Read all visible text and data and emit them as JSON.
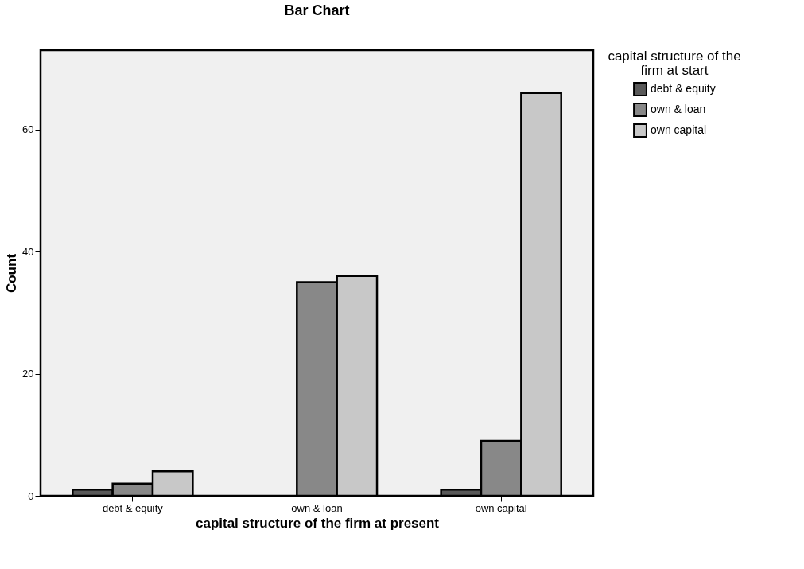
{
  "chart_data": {
    "type": "bar",
    "title": "Bar Chart",
    "xlabel": "capital structure of the firm at present",
    "ylabel": "Count",
    "legend_title": "capital structure of the firm at start",
    "categories": [
      "debt & equity",
      "own & loan",
      "own capital"
    ],
    "series": [
      {
        "name": "debt & equity",
        "color": "#595959",
        "values": [
          1,
          null,
          1
        ]
      },
      {
        "name": "own & loan",
        "color": "#888888",
        "values": [
          2,
          35,
          9
        ]
      },
      {
        "name": "own capital",
        "color": "#c8c8c8",
        "values": [
          4,
          36,
          66
        ]
      }
    ],
    "ylim": [
      0,
      73
    ],
    "yticks": [
      0,
      20,
      40,
      60
    ],
    "grid": false,
    "legend": "top right"
  }
}
